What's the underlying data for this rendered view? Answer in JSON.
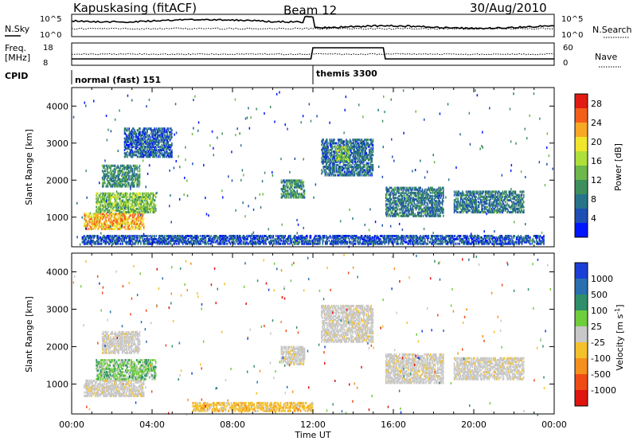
{
  "header": {
    "station": "Kapuskasing (fitACF)",
    "beam": "Beam 12",
    "date": "30/Aug/2010"
  },
  "top_panels": {
    "nsky_label": "N.Sky",
    "nsky_ticks": [
      "10^5",
      "10^0"
    ],
    "nsearch_label": "N.Search",
    "freq_label_1": "Freq.",
    "freq_label_2": "[MHz]",
    "freq_ticks": [
      "18",
      "8"
    ],
    "nave_label": "Nave",
    "nave_ticks": [
      "60",
      "0"
    ],
    "cpid_label": "CPID",
    "cpid_modes": [
      {
        "name": "normal (fast) 151",
        "start_hour": 0,
        "end_hour": 12
      },
      {
        "name": "themis 3300",
        "start_hour": 12,
        "end_hour": 24
      }
    ]
  },
  "chart_data": [
    {
      "type": "heatmap",
      "panel": "power",
      "ylabel": "Slant Range [km]",
      "xlabel": "Time UT",
      "xlim": [
        0,
        24
      ],
      "ylim": [
        200,
        4500
      ],
      "x_ticks": [
        "00:00",
        "04:00",
        "08:00",
        "12:00",
        "16:00",
        "20:00",
        "00:00"
      ],
      "y_ticks": [
        1000,
        2000,
        3000,
        4000
      ],
      "colorbar": {
        "label": "Power [dB]",
        "ticks": [
          4,
          8,
          12,
          16,
          20,
          24,
          28
        ],
        "range": [
          0,
          30
        ],
        "colors": [
          "#0016ff",
          "#1f4fb4",
          "#27748a",
          "#3f8f5e",
          "#6db84a",
          "#aee03b",
          "#f0e62c",
          "#f7a825",
          "#f45e1b",
          "#e21a14"
        ]
      },
      "echo_regions": [
        {
          "t0": 0.6,
          "t1": 3.6,
          "r0": 650,
          "r1": 1100,
          "mean_power": 22
        },
        {
          "t0": 1.2,
          "t1": 4.2,
          "r0": 1100,
          "r1": 1650,
          "mean_power": 14
        },
        {
          "t0": 1.5,
          "t1": 3.4,
          "r0": 1800,
          "r1": 2400,
          "mean_power": 10
        },
        {
          "t0": 2.6,
          "t1": 5.0,
          "r0": 2600,
          "r1": 3400,
          "mean_power": 6
        },
        {
          "t0": 10.4,
          "t1": 11.6,
          "r0": 1500,
          "r1": 2000,
          "mean_power": 10
        },
        {
          "t0": 12.4,
          "t1": 15.0,
          "r0": 2100,
          "r1": 3100,
          "mean_power": 7
        },
        {
          "t0": 13.1,
          "t1": 13.8,
          "r0": 2500,
          "r1": 2900,
          "mean_power": 14
        },
        {
          "t0": 15.6,
          "t1": 18.5,
          "r0": 1000,
          "r1": 1800,
          "mean_power": 8
        },
        {
          "t0": 19.0,
          "t1": 22.5,
          "r0": 1100,
          "r1": 1700,
          "mean_power": 8
        },
        {
          "t0": 0.5,
          "t1": 23.5,
          "r0": 250,
          "r1": 500,
          "mean_power": 5
        }
      ]
    },
    {
      "type": "heatmap",
      "panel": "velocity",
      "ylabel": "Slant Range [km]",
      "xlabel": "Time UT",
      "xlim": [
        0,
        24
      ],
      "ylim": [
        200,
        4500
      ],
      "x_ticks": [
        "00:00",
        "04:00",
        "08:00",
        "12:00",
        "16:00",
        "20:00",
        "00:00"
      ],
      "y_ticks": [
        1000,
        2000,
        3000,
        4000
      ],
      "colorbar": {
        "label": "Velocity [m s^-1]",
        "ticks": [
          "1000",
          "500",
          "100",
          "25",
          "-25",
          "-100",
          "-500",
          "-1000"
        ],
        "colors": [
          "#1b3fd6",
          "#2a6fb0",
          "#2f8f6a",
          "#6fce3c",
          "#c8c8c8",
          "#f4c12a",
          "#f58f1e",
          "#f04a16",
          "#e0140f"
        ]
      },
      "echo_regions": [
        {
          "t0": 0.6,
          "t1": 3.6,
          "r0": 650,
          "r1": 1100,
          "velocity": "-25 to 25"
        },
        {
          "t0": 1.2,
          "t1": 4.2,
          "r0": 1100,
          "r1": 1650,
          "velocity": "25 to 500"
        },
        {
          "t0": 1.5,
          "t1": 3.4,
          "r0": 1800,
          "r1": 2400,
          "velocity": "-25 to 25"
        },
        {
          "t0": 10.4,
          "t1": 11.6,
          "r0": 1500,
          "r1": 2000,
          "velocity": "-25 to 25"
        },
        {
          "t0": 12.4,
          "t1": 15.0,
          "r0": 2100,
          "r1": 3100,
          "velocity": "-25 to 25"
        },
        {
          "t0": 15.6,
          "t1": 18.5,
          "r0": 1000,
          "r1": 1800,
          "velocity": "-25 to 25"
        },
        {
          "t0": 19.0,
          "t1": 22.5,
          "r0": 1100,
          "r1": 1700,
          "velocity": "-25 to 25"
        },
        {
          "t0": 6.0,
          "t1": 12.0,
          "r0": 250,
          "r1": 500,
          "velocity": "-100 to -25"
        }
      ]
    }
  ]
}
